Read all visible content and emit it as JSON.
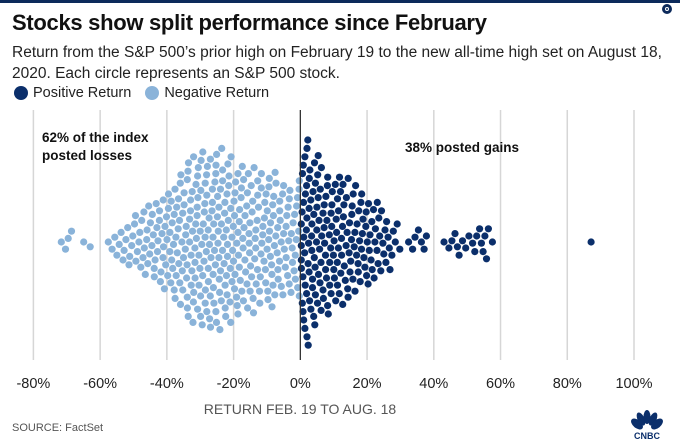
{
  "header": {
    "title": "Stocks show split performance since February",
    "subtitle": "Return from the S&P 500’s prior high on February 19 to the new all-time high set on August 18, 2020. Each circle represents an S&P 500 stock."
  },
  "legend": [
    {
      "label": "Positive Return",
      "color": "#0b2f6b"
    },
    {
      "label": "Negative Return",
      "color": "#8ab3d9"
    }
  ],
  "annotations": {
    "losses": [
      "62% of the index",
      "posted losses"
    ],
    "gains": "38% posted gains"
  },
  "footer": {
    "source": "SOURCE: FactSet",
    "logo": "CNBC"
  },
  "icons": {
    "share": "share-icon",
    "logo": "cnbc-peacock-icon"
  },
  "chart_data": {
    "type": "scatter",
    "subtype": "beeswarm",
    "title": "Stocks show split performance since February",
    "xlabel": "RETURN FEB. 19 TO AUG. 18",
    "ylabel": "",
    "xlim": [
      -80,
      100
    ],
    "xticks": [
      -80,
      -60,
      -40,
      -20,
      0,
      20,
      40,
      60,
      80,
      100
    ],
    "xtick_labels": [
      "-80%",
      "-60%",
      "-40%",
      "-20%",
      "0%",
      "20%",
      "40%",
      "60%",
      "80%",
      "100%"
    ],
    "grid": "vertical",
    "legend_position": "top-left",
    "series": [
      {
        "name": "Negative Return",
        "color": "#8ab3d9",
        "note": "Approximate count of stocks per 2-percentage-point return bin (bin start, count)",
        "bins": [
          [
            -72,
            2
          ],
          [
            -70,
            2
          ],
          [
            -66,
            1
          ],
          [
            -64,
            1
          ],
          [
            -58,
            2
          ],
          [
            -56,
            3
          ],
          [
            -54,
            4
          ],
          [
            -52,
            5
          ],
          [
            -50,
            6
          ],
          [
            -48,
            7
          ],
          [
            -46,
            8
          ],
          [
            -44,
            9
          ],
          [
            -42,
            10
          ],
          [
            -40,
            12
          ],
          [
            -38,
            13
          ],
          [
            -36,
            15
          ],
          [
            -34,
            17
          ],
          [
            -32,
            18
          ],
          [
            -30,
            19
          ],
          [
            -28,
            18
          ],
          [
            -26,
            19
          ],
          [
            -24,
            18
          ],
          [
            -22,
            17
          ],
          [
            -20,
            16
          ],
          [
            -18,
            15
          ],
          [
            -16,
            15
          ],
          [
            -14,
            14
          ],
          [
            -12,
            13
          ],
          [
            -10,
            15
          ],
          [
            -8,
            13
          ],
          [
            -6,
            12
          ],
          [
            -4,
            11
          ],
          [
            -2,
            12
          ]
        ]
      },
      {
        "name": "Positive Return",
        "color": "#0b2f6b",
        "note": "Approximate count of stocks per 2-percentage-point return bin (bin start, count)",
        "bins": [
          [
            0,
            22
          ],
          [
            2,
            21
          ],
          [
            4,
            17
          ],
          [
            6,
            16
          ],
          [
            8,
            15
          ],
          [
            10,
            14
          ],
          [
            12,
            13
          ],
          [
            14,
            12
          ],
          [
            16,
            11
          ],
          [
            18,
            10
          ],
          [
            20,
            9
          ],
          [
            22,
            8
          ],
          [
            24,
            7
          ],
          [
            26,
            5
          ],
          [
            28,
            3
          ],
          [
            32,
            2
          ],
          [
            34,
            2
          ],
          [
            36,
            3
          ],
          [
            42,
            1
          ],
          [
            44,
            2
          ],
          [
            46,
            3
          ],
          [
            48,
            2
          ],
          [
            50,
            2
          ],
          [
            52,
            3
          ],
          [
            54,
            4
          ],
          [
            56,
            2
          ],
          [
            86,
            1
          ]
        ]
      }
    ]
  }
}
